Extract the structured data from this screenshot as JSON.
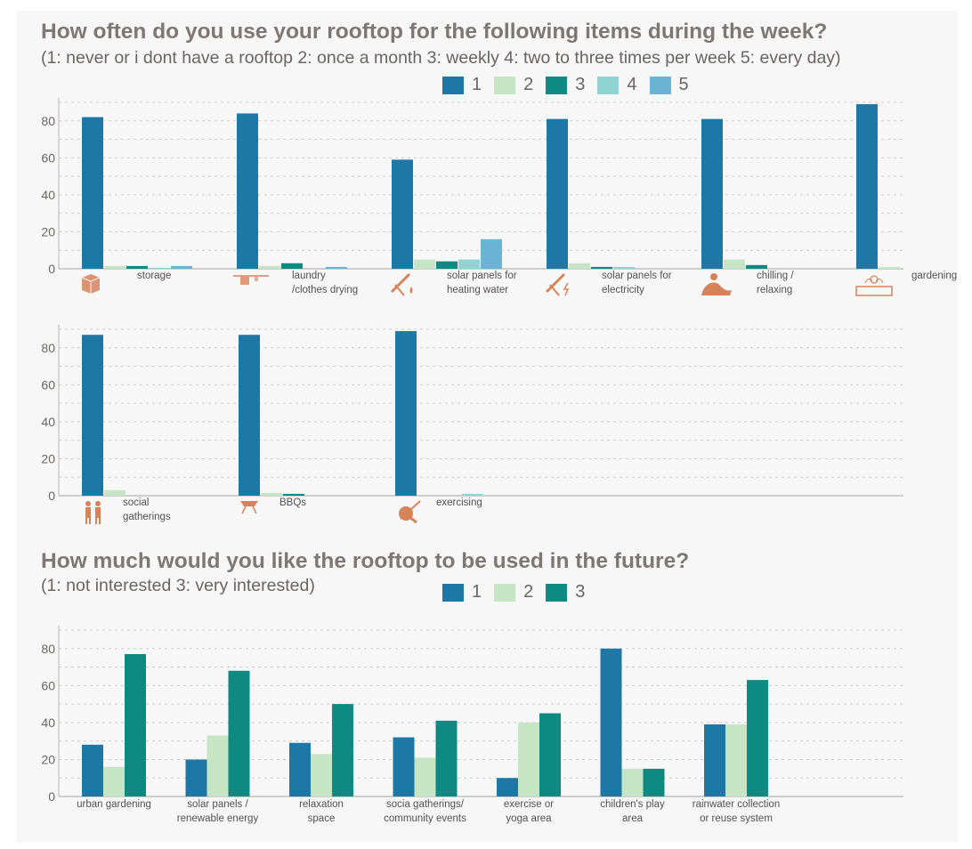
{
  "colors": {
    "s1": "#1d78a6",
    "s2": "#c5e5c4",
    "s3": "#0e8a82",
    "s4": "#8fd3d3",
    "s5": "#6ab4d6",
    "icon": "#d6835a",
    "grid": "#cccccc",
    "axis": "#b5b5b5"
  },
  "section1": {
    "title": "How often do you use your rooftop for the following items during the week?",
    "subtitle": "(1: never or i dont have a rooftop  2: once a month  3: weekly  4: two to three times per week 5: every day)",
    "legend": [
      "1",
      "2",
      "3",
      "4",
      "5"
    ]
  },
  "section2": {
    "title": "How much would you like the rooftop to be used in the future?",
    "subtitle": "(1: not interested  3: very interested)",
    "legend": [
      "1",
      "2",
      "3"
    ]
  },
  "chart_data": [
    {
      "type": "bar",
      "title": "How often do you use your rooftop for the following items during the week? (row 1)",
      "categories": [
        {
          "lines": [
            "storage"
          ],
          "icon": "box-icon"
        },
        {
          "lines": [
            "laundry",
            "/clothes drying"
          ],
          "icon": "clothesline-icon"
        },
        {
          "lines": [
            "solar panels for",
            "heating water"
          ],
          "icon": "solar-water-icon"
        },
        {
          "lines": [
            "solar panels for",
            "electricity"
          ],
          "icon": "solar-electric-icon"
        },
        {
          "lines": [
            "chilling /",
            "relaxing"
          ],
          "icon": "relaxing-person-icon"
        },
        {
          "lines": [
            "gardening"
          ],
          "icon": "planter-icon"
        }
      ],
      "series": [
        {
          "name": "1",
          "values": [
            82,
            84,
            59,
            81,
            81,
            89
          ]
        },
        {
          "name": "2",
          "values": [
            1.5,
            1.5,
            5,
            3,
            5,
            1
          ]
        },
        {
          "name": "3",
          "values": [
            1.5,
            3,
            4,
            1,
            2,
            0
          ]
        },
        {
          "name": "4",
          "values": [
            0.5,
            0,
            5,
            1,
            0,
            0
          ]
        },
        {
          "name": "5",
          "values": [
            1.5,
            1,
            16,
            0,
            0,
            0
          ]
        }
      ],
      "yticks": [
        "0",
        "20",
        "40",
        "60",
        "80"
      ],
      "ylim": [
        0,
        90
      ]
    },
    {
      "type": "bar",
      "title": "How often do you use your rooftop for the following items during the week? (row 2)",
      "categories": [
        {
          "lines": [
            "social",
            "gatherings"
          ],
          "icon": "people-icon"
        },
        {
          "lines": [
            "BBQs"
          ],
          "icon": "grill-icon"
        },
        {
          "lines": [
            "exercising"
          ],
          "icon": "exercise-icon"
        }
      ],
      "series": [
        {
          "name": "1",
          "values": [
            87,
            87,
            89
          ]
        },
        {
          "name": "2",
          "values": [
            3,
            1.5,
            0
          ]
        },
        {
          "name": "3",
          "values": [
            0,
            1,
            0
          ]
        },
        {
          "name": "4",
          "values": [
            0,
            0,
            1
          ]
        },
        {
          "name": "5",
          "values": [
            0,
            0,
            0
          ]
        }
      ],
      "yticks": [
        "0",
        "20",
        "40",
        "60",
        "80"
      ],
      "ylim": [
        0,
        90
      ]
    },
    {
      "type": "bar",
      "title": "How much would you like the rooftop to be used in the future?",
      "categories": [
        {
          "lines": [
            "urban gardening"
          ]
        },
        {
          "lines": [
            "solar panels /",
            "renewable energy"
          ]
        },
        {
          "lines": [
            "relaxation",
            "space"
          ]
        },
        {
          "lines": [
            "socia gatherings/",
            "community events"
          ]
        },
        {
          "lines": [
            "exercise or",
            "yoga area"
          ]
        },
        {
          "lines": [
            "children's play",
            "area"
          ]
        },
        {
          "lines": [
            "rainwater collection",
            "or reuse system"
          ]
        }
      ],
      "series": [
        {
          "name": "1",
          "values": [
            28,
            20,
            29,
            32,
            10,
            80,
            39
          ]
        },
        {
          "name": "2",
          "values": [
            16,
            33,
            23,
            21,
            40,
            15,
            39
          ]
        },
        {
          "name": "3",
          "values": [
            77,
            68,
            50,
            41,
            45,
            15,
            63
          ]
        }
      ],
      "yticks": [
        "0",
        "20",
        "40",
        "60",
        "80"
      ],
      "ylim": [
        0,
        90
      ]
    }
  ]
}
